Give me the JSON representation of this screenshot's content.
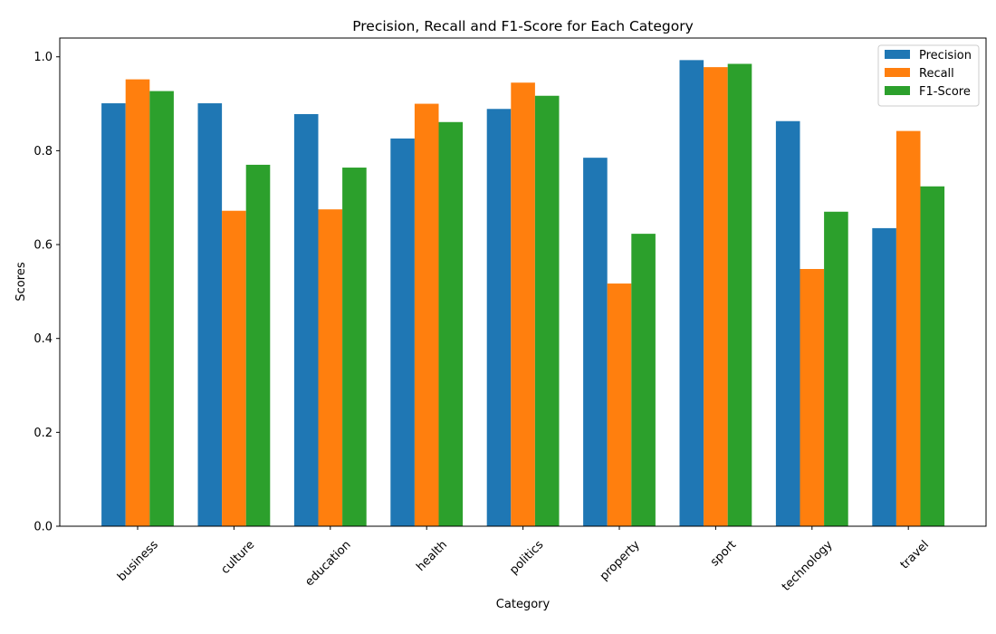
{
  "chart_data": {
    "type": "bar",
    "title": "Precision, Recall and F1-Score for Each Category",
    "xlabel": "Category",
    "ylabel": "Scores",
    "categories": [
      "business",
      "culture",
      "education",
      "health",
      "politics",
      "property",
      "sport",
      "technology",
      "travel"
    ],
    "series": [
      {
        "name": "Precision",
        "color": "#1f77b4",
        "values": [
          0.901,
          0.901,
          0.878,
          0.826,
          0.889,
          0.785,
          0.993,
          0.863,
          0.635
        ]
      },
      {
        "name": "Recall",
        "color": "#ff7f0e",
        "values": [
          0.952,
          0.672,
          0.675,
          0.9,
          0.945,
          0.517,
          0.978,
          0.548,
          0.842
        ]
      },
      {
        "name": "F1-Score",
        "color": "#2ca02c",
        "values": [
          0.927,
          0.77,
          0.764,
          0.861,
          0.917,
          0.623,
          0.985,
          0.67,
          0.724
        ]
      }
    ],
    "ylim": [
      0,
      1.04
    ],
    "yticks": [
      0.0,
      0.2,
      0.4,
      0.6,
      0.8,
      1.0
    ],
    "ytick_labels": [
      "0.0",
      "0.2",
      "0.4",
      "0.6",
      "0.8",
      "1.0"
    ],
    "grid": false,
    "legend_position": "top-right"
  }
}
